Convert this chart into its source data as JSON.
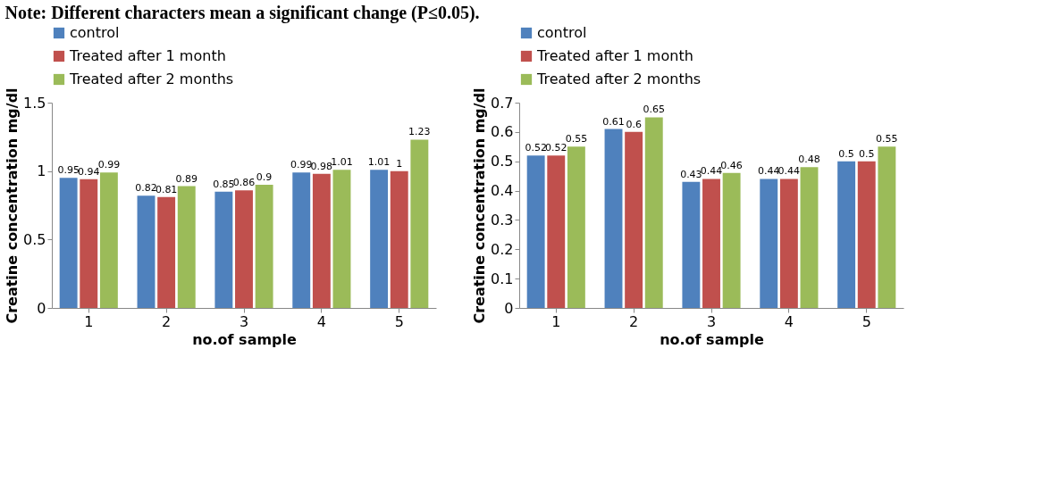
{
  "chart_data": [
    {
      "type": "bar",
      "ylabel": "Creatine concentration mg/dl",
      "xlabel": "no.of sample",
      "annotations": [
        "Note: Different characters mean a significant change (P≤0.05)."
      ],
      "categories": [
        "1",
        "2",
        "3",
        "4",
        "5"
      ],
      "series": [
        {
          "name": "control",
          "color": "#4f81bd",
          "values": [
            0.95,
            0.82,
            0.85,
            0.99,
            1.01
          ]
        },
        {
          "name": "Treated after 1 month",
          "color": "#c0504d",
          "values": [
            0.94,
            0.81,
            0.86,
            0.98,
            1
          ]
        },
        {
          "name": "Treated after 2 months",
          "color": "#9bbb59",
          "values": [
            0.99,
            0.89,
            0.9,
            1.01,
            1.23
          ]
        }
      ],
      "ylim": [
        0,
        1.5
      ],
      "yticks": [
        0,
        0.5,
        1,
        1.5
      ],
      "data_labels": true,
      "grid": false,
      "legend": "top left"
    },
    {
      "type": "bar",
      "ylabel": "Creatine concentration mg/dl",
      "xlabel": "no.of sample",
      "categories": [
        "1",
        "2",
        "3",
        "4",
        "5"
      ],
      "series": [
        {
          "name": "control",
          "color": "#4f81bd",
          "values": [
            0.52,
            0.61,
            0.43,
            0.44,
            0.5
          ]
        },
        {
          "name": "Treated after 1 month",
          "color": "#c0504d",
          "values": [
            0.52,
            0.6,
            0.44,
            0.44,
            0.5
          ]
        },
        {
          "name": "Treated after 2 months",
          "color": "#9bbb59",
          "values": [
            0.55,
            0.65,
            0.46,
            0.48,
            0.55
          ]
        }
      ],
      "ylim": [
        0,
        0.7
      ],
      "yticks": [
        0,
        0.1,
        0.2,
        0.3,
        0.4,
        0.5,
        0.6,
        0.7
      ],
      "data_labels": true,
      "grid": false,
      "legend": "top left"
    }
  ]
}
